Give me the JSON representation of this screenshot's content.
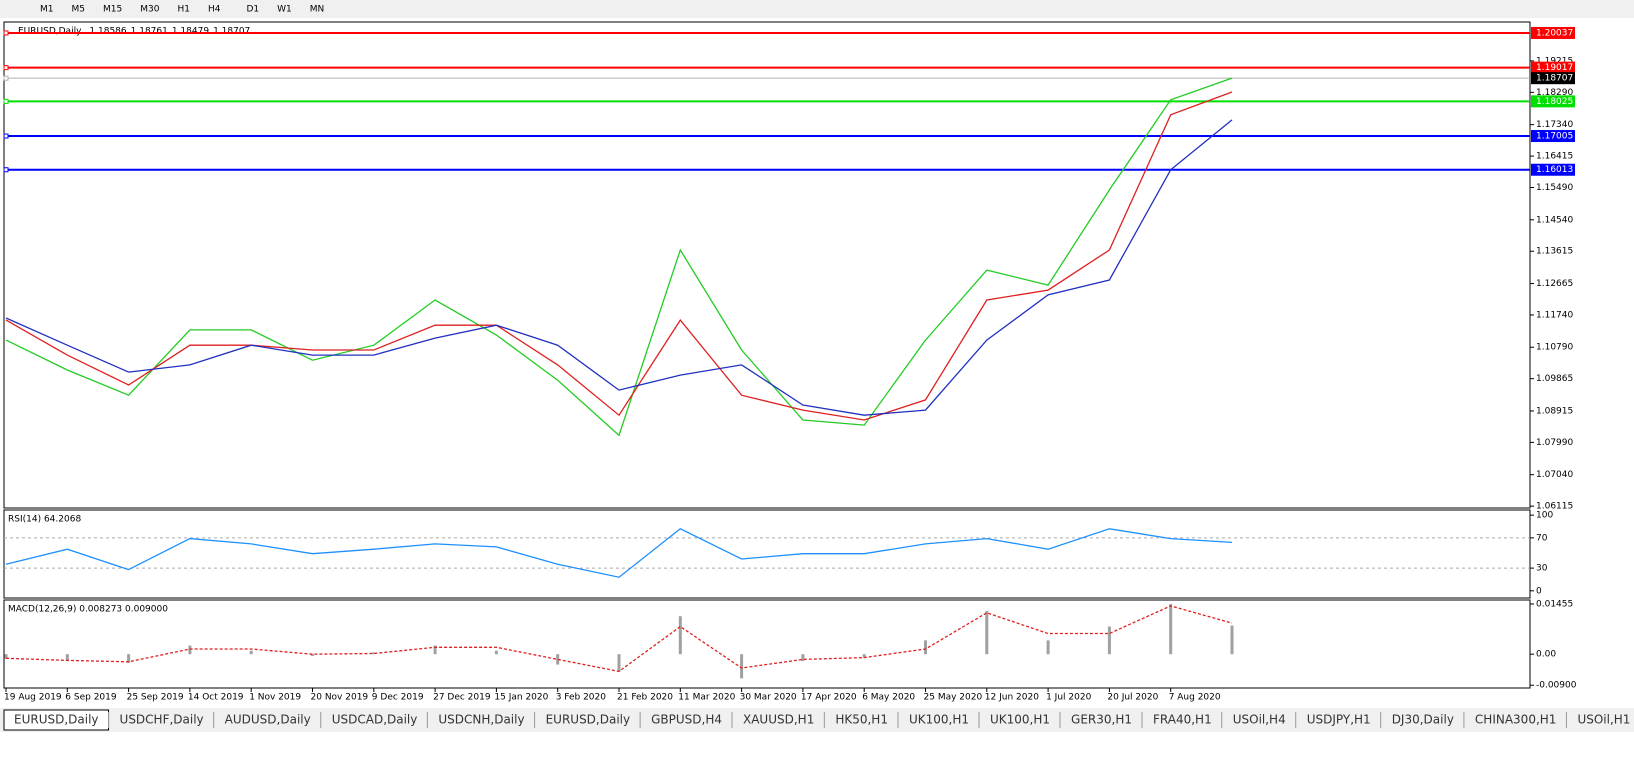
{
  "toolbar": {
    "timeframes": [
      "M1",
      "M5",
      "M15",
      "M30",
      "H1",
      "H4",
      "D1",
      "W1",
      "MN"
    ]
  },
  "chart_data": [
    {
      "type": "line",
      "title": "EURUSD,Daily",
      "ohlc": [
        1.18586,
        1.18761,
        1.18479,
        1.18707
      ],
      "categories": [
        "19 Aug 2019",
        "6 Sep 2019",
        "25 Sep 2019",
        "14 Oct 2019",
        "1 Nov 2019",
        "20 Nov 2019",
        "9 Dec 2019",
        "27 Dec 2019",
        "15 Jan 2020",
        "3 Feb 2020",
        "21 Feb 2020",
        "11 Mar 2020",
        "30 Mar 2020",
        "17 Apr 2020",
        "6 May 2020",
        "25 May 2020",
        "12 Jun 2020",
        "1 Jul 2020",
        "20 Jul 2020",
        "7 Aug 2020",
        null
      ],
      "series": [
        {
          "color": "#22cc22",
          "values": [
            1.11,
            1.1012,
            1.0938,
            1.113,
            1.113,
            1.1041,
            1.1085,
            1.1218,
            1.1115,
            1.0982,
            1.082,
            1.1365,
            1.1071,
            1.0865,
            1.085,
            1.11,
            1.1306,
            1.1262,
            1.1542,
            1.1807,
            1.1871
          ]
        },
        {
          "color": "#e02020",
          "values": [
            1.1159,
            1.1056,
            1.0968,
            1.1085,
            1.1085,
            1.1071,
            1.1071,
            1.1144,
            1.1144,
            1.1027,
            1.0879,
            1.1159,
            1.0938,
            1.0894,
            1.0865,
            1.0924,
            1.1218,
            1.1247,
            1.1365,
            1.1763,
            1.183
          ]
        },
        {
          "color": "#2030c0",
          "values": [
            1.1165,
            1.1085,
            1.1006,
            1.1027,
            1.1085,
            1.1056,
            1.1056,
            1.1106,
            1.1144,
            1.1085,
            1.0953,
            1.0997,
            1.1027,
            1.0909,
            1.0879,
            1.0894,
            1.11,
            1.1233,
            1.1277,
            1.1601,
            1.1748
          ]
        }
      ],
      "levels": [
        {
          "value": 1.20037,
          "color": "#ff0000"
        },
        {
          "value": 1.19017,
          "color": "#ff0000"
        },
        {
          "value": 1.18707,
          "color": "#000000"
        },
        {
          "value": 1.18025,
          "color": "#00e000"
        },
        {
          "value": 1.17005,
          "color": "#0000ff"
        },
        {
          "value": 1.16013,
          "color": "#0000ff"
        }
      ],
      "ylim": [
        1.0606,
        1.2036
      ],
      "yticks": [
        {
          "value": 1.19215,
          "label": "1.19215"
        },
        {
          "value": 1.1829,
          "label": "1.18290"
        },
        {
          "value": 1.1734,
          "label": "1.17340"
        },
        {
          "value": 1.16415,
          "label": "1.16415"
        },
        {
          "value": 1.1549,
          "label": "1.15490"
        },
        {
          "value": 1.1454,
          "label": "1.14540"
        },
        {
          "value": 1.13615,
          "label": "1.13615"
        },
        {
          "value": 1.12665,
          "label": "1.12665"
        },
        {
          "value": 1.1174,
          "label": "1.11740"
        },
        {
          "value": 1.1079,
          "label": "1.10790"
        },
        {
          "value": 1.09865,
          "label": "1.09865"
        },
        {
          "value": 1.08915,
          "label": "1.08915"
        },
        {
          "value": 1.0799,
          "label": "1.07990"
        },
        {
          "value": 1.0704,
          "label": "1.07040"
        },
        {
          "value": 1.06115,
          "label": "1.06115"
        }
      ]
    },
    {
      "type": "line",
      "title": "RSI(14) 64.2068",
      "color": "#1e90ff",
      "values": [
        35,
        55,
        28,
        69,
        62,
        49,
        55,
        62,
        58,
        35,
        18,
        82,
        42,
        49,
        49,
        62,
        69,
        55,
        82,
        69,
        64
      ],
      "ylim": [
        -9.5,
        106.8
      ],
      "yticks": [
        100,
        70,
        30,
        0
      ],
      "grid_ticks": [
        70,
        30
      ]
    },
    {
      "type": "macd",
      "title": "MACD(12,26,9) 0.008273 0.009000",
      "series": [
        {
          "color": "#a0a0a0",
          "values": [
            -0.0013,
            -0.002,
            -0.0025,
            0.0025,
            0.001,
            -0.0005,
            0.0005,
            0.0025,
            0.001,
            -0.003,
            -0.005,
            0.011,
            -0.007,
            -0.002,
            -0.001,
            0.004,
            0.0125,
            0.004,
            0.008,
            0.0145,
            0.008273
          ]
        },
        {
          "color": "#e02020",
          "values": [
            -0.0012,
            -0.0018,
            -0.0022,
            0.0015,
            0.0015,
            0,
            0.0002,
            0.002,
            0.002,
            -0.0015,
            -0.005,
            0.008,
            -0.004,
            -0.0015,
            -0.001,
            0.0015,
            0.012,
            0.006,
            0.006,
            0.014,
            0.009
          ]
        }
      ],
      "ylim": [
        -0.0098,
        0.0157
      ],
      "yticks": [
        0.01455,
        {
          "value": 0,
          "label": "0.00"
        },
        {
          "value": -0.009,
          "label": "-0.00900"
        }
      ]
    }
  ],
  "tabs": [
    "EURUSD,Daily",
    "USDCHF,Daily",
    "AUDUSD,Daily",
    "USDCAD,Daily",
    "USDCNH,Daily",
    "EURUSD,Daily",
    "GBPUSD,H4",
    "XAUUSD,H1",
    "HK50,H1",
    "UK100,H1",
    "UK100,H1",
    "GER30,H1",
    "FRA40,H1",
    "USOil,H4",
    "USDJPY,H1",
    "DJ30,Daily",
    "CHINA300,H1",
    "USOil,H1"
  ]
}
